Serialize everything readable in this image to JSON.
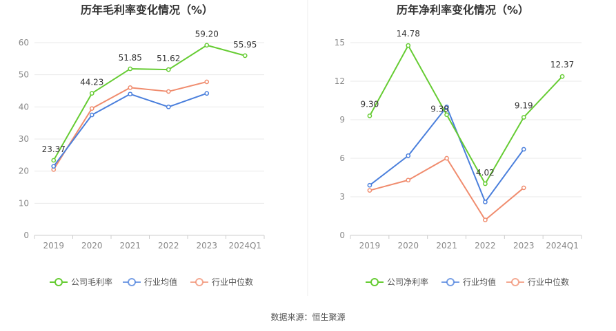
{
  "source_text": "数据来源：恒生聚源",
  "chart_data": [
    {
      "type": "line",
      "title": "历年毛利率变化情况（%）",
      "categories": [
        "2019",
        "2020",
        "2021",
        "2022",
        "2023",
        "2024Q1"
      ],
      "ylim": [
        0,
        60
      ],
      "yticks": [
        0,
        10,
        20,
        30,
        40,
        50,
        60
      ],
      "grid": true,
      "legend_position": "bottom",
      "series": [
        {
          "name": "公司毛利率",
          "color": "#66cc33",
          "values": [
            23.37,
            44.23,
            51.85,
            51.62,
            59.2,
            55.95
          ],
          "labels": [
            "23.37",
            "44.23",
            "51.85",
            "51.62",
            "59.20",
            "55.95"
          ]
        },
        {
          "name": "行业均值",
          "color": "#4a7fdc",
          "values": [
            21.5,
            37.5,
            44.0,
            40.0,
            44.2,
            null
          ]
        },
        {
          "name": "行业中位数",
          "color": "#f08c6e",
          "values": [
            20.5,
            39.5,
            46.0,
            44.8,
            47.8,
            null
          ]
        }
      ]
    },
    {
      "type": "line",
      "title": "历年净利率变化情况（%）",
      "categories": [
        "2019",
        "2020",
        "2021",
        "2022",
        "2023",
        "2024Q1"
      ],
      "ylim": [
        0,
        15
      ],
      "yticks": [
        0,
        3,
        6,
        9,
        12,
        15
      ],
      "grid": true,
      "legend_position": "bottom",
      "series": [
        {
          "name": "公司净利率",
          "color": "#66cc33",
          "values": [
            9.3,
            14.78,
            9.39,
            4.02,
            9.19,
            12.37
          ],
          "labels": [
            "9.30",
            "14.78",
            "9.39",
            "4.02",
            "9.19",
            "12.37"
          ]
        },
        {
          "name": "行业均值",
          "color": "#4a7fdc",
          "values": [
            3.9,
            6.2,
            10.0,
            2.6,
            6.7,
            null
          ]
        },
        {
          "name": "行业中位数",
          "color": "#f08c6e",
          "values": [
            3.5,
            4.3,
            6.0,
            1.2,
            3.7,
            null
          ]
        }
      ]
    }
  ]
}
